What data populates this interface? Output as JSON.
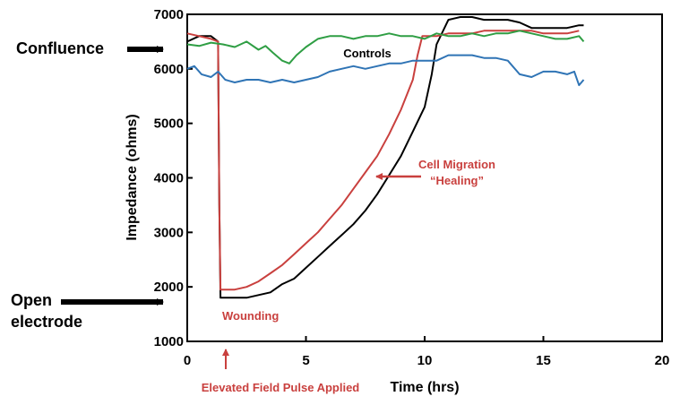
{
  "chart_data": {
    "type": "line",
    "xlabel": "Time (hrs)",
    "ylabel": "Impedance (ohms)",
    "xlim": [
      0,
      20
    ],
    "ylim": [
      1000,
      7000
    ],
    "xticks": [
      "0",
      "5",
      "10",
      "15",
      "20"
    ],
    "yticks": [
      "1000",
      "2000",
      "3000",
      "4000",
      "5000",
      "6000",
      "7000"
    ],
    "grid": false,
    "series": [
      {
        "color": "#000000",
        "x": [
          0,
          0.5,
          1.0,
          1.3,
          1.35,
          1.4,
          2.0,
          2.5,
          3.0,
          3.5,
          4.0,
          4.5,
          5.0,
          5.5,
          6.0,
          6.5,
          7.0,
          7.5,
          8.0,
          8.5,
          9.0,
          9.5,
          10.0,
          10.3,
          10.5,
          11.0,
          11.5,
          12.0,
          12.5,
          13.0,
          13.5,
          14.0,
          14.5,
          15.0,
          15.5,
          16.0,
          16.5,
          16.7
        ],
        "y": [
          6500,
          6600,
          6600,
          6500,
          3500,
          1800,
          1800,
          1800,
          1850,
          1900,
          2050,
          2150,
          2350,
          2550,
          2750,
          2950,
          3150,
          3400,
          3700,
          4050,
          4400,
          4850,
          5300,
          5900,
          6450,
          6900,
          6950,
          6950,
          6900,
          6900,
          6900,
          6850,
          6750,
          6750,
          6750,
          6750,
          6800,
          6800
        ]
      },
      {
        "color": "#c9403e",
        "x": [
          0,
          0.5,
          1.0,
          1.3,
          1.35,
          1.4,
          2.0,
          2.5,
          3.0,
          3.5,
          4.0,
          4.5,
          5.0,
          5.5,
          6.0,
          6.5,
          7.0,
          7.5,
          8.0,
          8.5,
          9.0,
          9.5,
          9.7,
          9.9,
          10.1,
          10.5,
          11.0,
          11.5,
          12.0,
          12.5,
          13.0,
          13.5,
          14.0,
          14.5,
          15.0,
          15.5,
          16.0,
          16.5
        ],
        "y": [
          6650,
          6600,
          6550,
          6500,
          3500,
          1950,
          1950,
          2000,
          2100,
          2250,
          2400,
          2600,
          2800,
          3000,
          3250,
          3500,
          3800,
          4100,
          4400,
          4800,
          5250,
          5800,
          6250,
          6600,
          6600,
          6600,
          6650,
          6650,
          6650,
          6700,
          6700,
          6700,
          6700,
          6700,
          6650,
          6650,
          6650,
          6700
        ]
      },
      {
        "color": "#2f9e44",
        "x": [
          0,
          0.5,
          1.0,
          1.5,
          2.0,
          2.5,
          3.0,
          3.3,
          3.6,
          4.0,
          4.3,
          4.6,
          5.0,
          5.5,
          6.0,
          6.5,
          7.0,
          7.5,
          8.0,
          8.5,
          9.0,
          9.5,
          10.0,
          10.5,
          11.0,
          11.5,
          12.0,
          12.5,
          13.0,
          13.5,
          14.0,
          14.5,
          15.0,
          15.5,
          16.0,
          16.5,
          16.7
        ],
        "y": [
          6450,
          6420,
          6480,
          6450,
          6400,
          6500,
          6350,
          6420,
          6300,
          6150,
          6100,
          6250,
          6400,
          6550,
          6600,
          6600,
          6550,
          6600,
          6600,
          6650,
          6600,
          6600,
          6550,
          6650,
          6600,
          6600,
          6650,
          6600,
          6650,
          6650,
          6700,
          6650,
          6600,
          6550,
          6550,
          6600,
          6500
        ]
      },
      {
        "color": "#2f74b5",
        "x": [
          0,
          0.3,
          0.6,
          1.0,
          1.3,
          1.6,
          2.0,
          2.5,
          3.0,
          3.5,
          4.0,
          4.5,
          5.0,
          5.5,
          6.0,
          6.5,
          7.0,
          7.5,
          8.0,
          8.5,
          9.0,
          9.5,
          10.0,
          10.5,
          11.0,
          11.5,
          12.0,
          12.5,
          13.0,
          13.5,
          14.0,
          14.5,
          15.0,
          15.5,
          16.0,
          16.3,
          16.5,
          16.7
        ],
        "y": [
          6000,
          6050,
          5900,
          5850,
          5950,
          5800,
          5750,
          5800,
          5800,
          5750,
          5800,
          5750,
          5800,
          5850,
          5950,
          6000,
          6050,
          6000,
          6050,
          6100,
          6100,
          6150,
          6150,
          6150,
          6250,
          6250,
          6250,
          6200,
          6200,
          6150,
          5900,
          5850,
          5950,
          5950,
          5900,
          5950,
          5700,
          5800
        ]
      }
    ],
    "annotations": {
      "controls": "Controls",
      "migration_line1": "Cell Migration",
      "migration_line2": "“Healing”",
      "wounding": "Wounding",
      "pulse": "Elevated Field Pulse Applied",
      "confluence": "Confluence",
      "open_line1": "Open",
      "open_line2": "electrode"
    }
  }
}
